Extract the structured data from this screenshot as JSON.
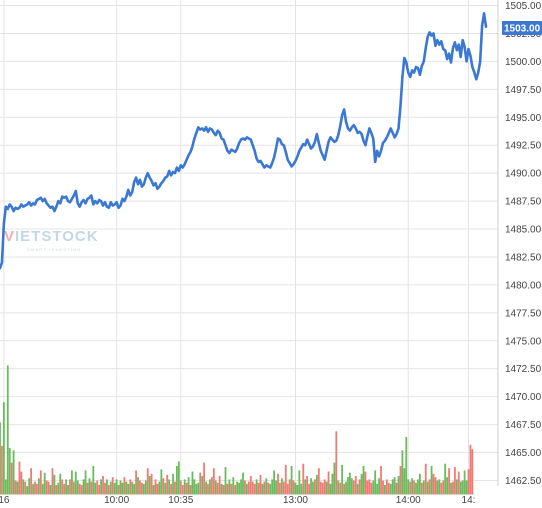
{
  "chart_data": {
    "type": "line",
    "watermark": {
      "text": "VIETSTOCK",
      "tagline": "SMART INVESTING",
      "colors": {
        "accent": "#e8474a",
        "main": "#7aa9c9"
      }
    },
    "colors": {
      "line": "#3a78d4",
      "vol_up": "#68bc5c",
      "vol_down": "#ef7b73",
      "grid": "#e4e4e4",
      "current_bg": "#3a78d4",
      "current_text": "#ffffff"
    },
    "grid": true,
    "y_axis": {
      "position": "right",
      "ylim": [
        1461.25,
        1505.5
      ],
      "ticks": [
        1462.5,
        1465.0,
        1467.5,
        1470.0,
        1472.5,
        1475.0,
        1477.5,
        1480.0,
        1482.5,
        1485.0,
        1487.5,
        1490.0,
        1492.5,
        1495.0,
        1497.5,
        1500.0,
        1502.5,
        1505.0
      ],
      "tick_labels": [
        "1462.50",
        "1465.00",
        "1467.50",
        "1470.00",
        "1472.50",
        "1475.00",
        "1477.50",
        "1480.00",
        "1482.50",
        "1485.00",
        "1487.50",
        "1490.00",
        "1492.50",
        "1495.00",
        "1497.50",
        "1500.00",
        "1502.50",
        "1505.00"
      ]
    },
    "x_axis": {
      "tick_labels": [
        "16",
        "10:00",
        "10:35",
        "13:00",
        "14:00",
        "14:"
      ],
      "tick_index": [
        2,
        60,
        93,
        152,
        210,
        241
      ]
    },
    "current_value": "1503.00",
    "price_series": [
      1481.5,
      1482.0,
      1485.5,
      1487.0,
      1486.8,
      1487.2,
      1487.0,
      1486.6,
      1486.9,
      1486.8,
      1486.9,
      1487.2,
      1487.0,
      1487.1,
      1487.2,
      1487.4,
      1487.1,
      1487.3,
      1487.2,
      1487.6,
      1487.7,
      1487.8,
      1487.5,
      1487.7,
      1487.3,
      1487.1,
      1486.9,
      1487.0,
      1486.6,
      1487.0,
      1487.5,
      1487.3,
      1487.9,
      1487.8,
      1487.9,
      1487.5,
      1487.4,
      1487.7,
      1488.0,
      1488.4,
      1487.3,
      1487.0,
      1487.4,
      1487.6,
      1487.3,
      1487.7,
      1487.8,
      1488.0,
      1487.2,
      1487.5,
      1487.3,
      1487.6,
      1487.5,
      1487.1,
      1487.4,
      1487.0,
      1486.9,
      1487.4,
      1487.1,
      1487.2,
      1487.4,
      1486.9,
      1487.1,
      1487.7,
      1487.5,
      1487.9,
      1488.5,
      1488.0,
      1488.3,
      1489.2,
      1489.6,
      1489.0,
      1489.4,
      1488.8,
      1489.0,
      1489.6,
      1490.0,
      1489.6,
      1489.3,
      1488.9,
      1489.1,
      1488.6,
      1488.8,
      1489.1,
      1489.3,
      1489.6,
      1489.7,
      1490.2,
      1489.8,
      1490.1,
      1490.0,
      1490.5,
      1490.2,
      1490.7,
      1490.5,
      1490.8,
      1491.2,
      1491.6,
      1491.9,
      1492.4,
      1493.1,
      1493.6,
      1494.1,
      1493.9,
      1494.0,
      1493.8,
      1494.1,
      1493.7,
      1494.0,
      1493.9,
      1493.6,
      1493.4,
      1493.8,
      1493.6,
      1493.1,
      1493.0,
      1492.5,
      1492.0,
      1491.8,
      1492.1,
      1492.0,
      1491.9,
      1492.2,
      1492.7,
      1493.0,
      1493.1,
      1493.0,
      1493.2,
      1493.1,
      1493.0,
      1492.5,
      1492.0,
      1491.3,
      1491.0,
      1491.1,
      1490.8,
      1490.5,
      1490.7,
      1490.6,
      1490.5,
      1490.9,
      1491.4,
      1492.2,
      1493.1,
      1493.0,
      1492.6,
      1492.5,
      1491.9,
      1491.2,
      1490.9,
      1490.6,
      1490.8,
      1491.1,
      1491.5,
      1492.0,
      1492.3,
      1492.6,
      1492.5,
      1493.0,
      1492.6,
      1492.2,
      1492.4,
      1492.8,
      1493.5,
      1492.7,
      1492.0,
      1491.6,
      1491.2,
      1492.0,
      1492.8,
      1493.2,
      1493.0,
      1492.8,
      1492.9,
      1493.4,
      1494.2,
      1495.2,
      1495.7,
      1494.6,
      1494.0,
      1493.8,
      1494.1,
      1494.3,
      1494.0,
      1493.6,
      1493.7,
      1493.5,
      1492.9,
      1492.5,
      1493.3,
      1494.0,
      1493.6,
      1493.1,
      1491.0,
      1492.0,
      1491.5,
      1492.0,
      1492.7,
      1492.9,
      1493.2,
      1493.6,
      1494.0,
      1493.6,
      1493.2,
      1493.5,
      1494.0,
      1496.0,
      1498.6,
      1500.3,
      1499.9,
      1499.0,
      1498.6,
      1499.2,
      1499.0,
      1499.5,
      1499.4,
      1498.8,
      1499.6,
      1500.0,
      1501.2,
      1502.2,
      1502.6,
      1502.3,
      1502.5,
      1501.4,
      1501.9,
      1501.5,
      1501.8,
      1501.1,
      1501.0,
      1500.2,
      1500.7,
      1499.9,
      1501.2,
      1501.7,
      1501.0,
      1501.5,
      1500.4,
      1501.9,
      1501.3,
      1500.0,
      1501.1,
      1500.5,
      1499.5,
      1499.0,
      1498.4,
      1499.0,
      1500.0,
      1503.2,
      1504.3,
      1503.1
    ],
    "volume_series": [
      1467.7,
      1465.6,
      1469.5,
      1462.6,
      1472.8,
      1465.4,
      1464.1,
      1465.2,
      1462.5,
      1462.4,
      1464.2,
      1463.3,
      1462.6,
      1462.4,
      1462.0,
      1462.7,
      1463.6,
      1462.2,
      1462.4,
      1462.2,
      1462.7,
      1463.4,
      1462.2,
      1463.2,
      1462.5,
      1462.4,
      1462.1,
      1463.6,
      1463.0,
      1462.1,
      1462.3,
      1463.1,
      1462.6,
      1462.2,
      1462.6,
      1462.1,
      1462.6,
      1463.4,
      1462.4,
      1463.3,
      1462.5,
      1462.2,
      1462.1,
      1462.6,
      1463.4,
      1462.3,
      1462.7,
      1462.4,
      1463.8,
      1462.3,
      1462.5,
      1462.1,
      1462.6,
      1462.9,
      1462.3,
      1462.6,
      1462.1,
      1462.4,
      1462.8,
      1462.3,
      1462.6,
      1462.1,
      1462.5,
      1462.3,
      1462.8,
      1462.4,
      1462.2,
      1462.6,
      1462.4,
      1462.2,
      1463.4,
      1462.8,
      1462.5,
      1462.3,
      1462.2,
      1462.5,
      1463.6,
      1462.9,
      1463.1,
      1462.1,
      1462.6,
      1462.2,
      1462.4,
      1463.5,
      1462.7,
      1462.3,
      1463.0,
      1462.6,
      1462.2,
      1463.1,
      1462.4,
      1463.8,
      1464.2,
      1462.5,
      1462.1,
      1462.6,
      1462.3,
      1462.8,
      1462.1,
      1463.3,
      1462.6,
      1462.2,
      1462.3,
      1463.2,
      1462.9,
      1464.1,
      1462.4,
      1462.2,
      1462.6,
      1462.8,
      1463.6,
      1462.5,
      1462.3,
      1462.9,
      1462.2,
      1462.1,
      1463.7,
      1462.2,
      1462.6,
      1462.2,
      1462.8,
      1462.1,
      1462.4,
      1462.3,
      1462.6,
      1463.2,
      1462.5,
      1462.2,
      1462.4,
      1462.9,
      1462.4,
      1462.2,
      1462.6,
      1462.3,
      1463.0,
      1462.2,
      1462.4,
      1462.7,
      1462.3,
      1462.2,
      1462.6,
      1463.4,
      1462.5,
      1463.1,
      1462.3,
      1462.7,
      1462.4,
      1463.9,
      1462.2,
      1462.6,
      1463.8,
      1462.5,
      1462.3,
      1462.1,
      1463.4,
      1462.2,
      1464.0,
      1462.6,
      1462.9,
      1462.2,
      1462.7,
      1462.4,
      1462.6,
      1463.0,
      1463.6,
      1462.4,
      1462.3,
      1462.6,
      1462.4,
      1463.3,
      1462.2,
      1463.1,
      1464.1,
      1466.9,
      1462.5,
      1462.3,
      1463.9,
      1462.2,
      1462.4,
      1462.8,
      1463.2,
      1462.7,
      1462.5,
      1462.9,
      1462.2,
      1462.6,
      1463.1,
      1463.8,
      1463.3,
      1462.5,
      1462.6,
      1462.3,
      1462.5,
      1463.4,
      1462.2,
      1462.7,
      1463.8,
      1462.5,
      1462.1,
      1462.6,
      1462.3,
      1462.2,
      1462.6,
      1462.8,
      1462.3,
      1462.9,
      1463.8,
      1465.2,
      1463.6,
      1466.4,
      1462.6,
      1462.4,
      1462.7,
      1462.5,
      1462.3,
      1462.6,
      1463.1,
      1462.3,
      1462.5,
      1464.0,
      1462.4,
      1462.6,
      1463.8,
      1463.1,
      1462.8,
      1462.5,
      1462.6,
      1462.3,
      1462.5,
      1464.0,
      1462.8,
      1463.6,
      1462.3,
      1462.4,
      1463.7,
      1462.6,
      1463.3,
      1462.4,
      1462.5,
      1463.4,
      1462.5,
      1463.5,
      1465.7,
      1465.3
    ],
    "volume_up": [
      1,
      0,
      1,
      1,
      1,
      1,
      0,
      1,
      0,
      1,
      0,
      0,
      1,
      0,
      1,
      1,
      0,
      1,
      0,
      0,
      1,
      0,
      1,
      1,
      0,
      0,
      1,
      0,
      1,
      0,
      1,
      1,
      0,
      0,
      1,
      1,
      0,
      1,
      0,
      1,
      1,
      0,
      0,
      1,
      1,
      0,
      1,
      0,
      1,
      1,
      0,
      0,
      1,
      0,
      0,
      1,
      0,
      1,
      0,
      1,
      1,
      0,
      1,
      1,
      0,
      1,
      1,
      0,
      1,
      1,
      0,
      1,
      0,
      0,
      1,
      1,
      0,
      1,
      0,
      1,
      0,
      0,
      1,
      1,
      0,
      1,
      0,
      1,
      0,
      1,
      0,
      1,
      1,
      0,
      0,
      1,
      0,
      1,
      0,
      1,
      1,
      1,
      1,
      0,
      1,
      0,
      1,
      0,
      1,
      0,
      0,
      1,
      0,
      0,
      1,
      0,
      1,
      0,
      1,
      0,
      1,
      0,
      1,
      1,
      1,
      1,
      0,
      1,
      0,
      0,
      0,
      0,
      1,
      0,
      0,
      1,
      0,
      1,
      0,
      1,
      1,
      1,
      1,
      0,
      0,
      1,
      0,
      0,
      0,
      0,
      1,
      0,
      1,
      1,
      1,
      1,
      0,
      1,
      0,
      0,
      1,
      1,
      0,
      1,
      0,
      0,
      0,
      0,
      1,
      0,
      1,
      1,
      1,
      0,
      1,
      0,
      1,
      0,
      1,
      1,
      1,
      1,
      0,
      0,
      1,
      0,
      1,
      1,
      0,
      0,
      0,
      0,
      1,
      1,
      1,
      1,
      0,
      0,
      1,
      0,
      0,
      1,
      1,
      1,
      0,
      1,
      0,
      1,
      1,
      1,
      1,
      0,
      1,
      0,
      1,
      1,
      1,
      0,
      1,
      0,
      1,
      0,
      1,
      0,
      0,
      1,
      1,
      0,
      0,
      1,
      1,
      0,
      1,
      0,
      0,
      1,
      0,
      1,
      1,
      1,
      1
    ]
  }
}
